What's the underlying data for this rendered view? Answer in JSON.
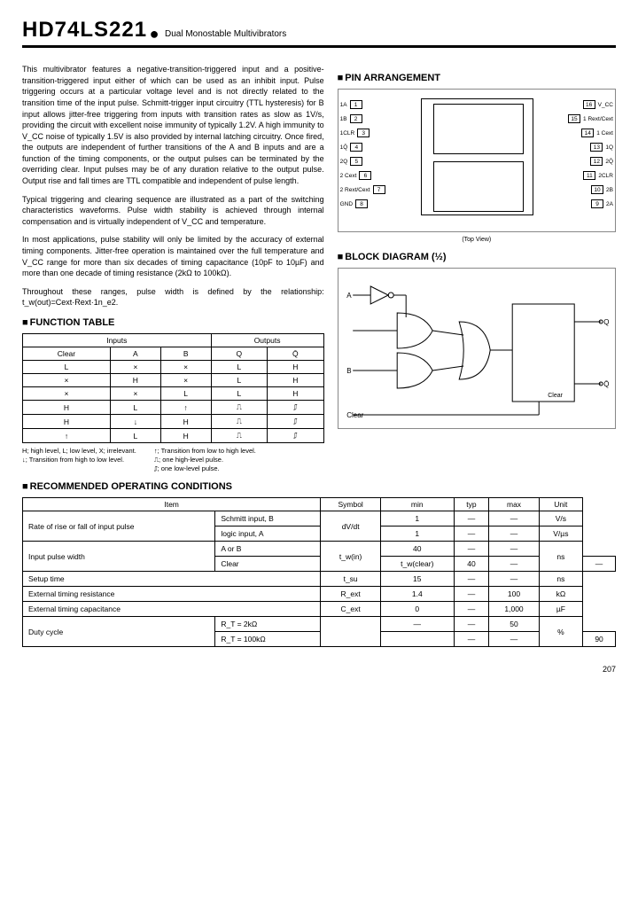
{
  "header": {
    "part_number": "HD74LS221",
    "subtitle": "Dual Monostable Multivibrators"
  },
  "description": {
    "p1": "This multivibrator features a negative-transition-triggered input and a positive-transition-triggered input either of which can be used as an inhibit input. Pulse triggering occurs at a particular voltage level and is not directly related to the transition time of the input pulse. Schmitt-trigger input circuitry (TTL hysteresis) for B input allows jitter-free triggering from inputs with transition rates as slow as 1V/s, providing the circuit with excellent noise immunity of typically 1.2V. A high immunity to V_CC noise of typically 1.5V is also provided by internal latching circuitry. Once fired, the outputs are independent of further transitions of the A and B inputs and are a function of the timing components, or the output pulses can be terminated by the overriding clear. Input pulses may be of any duration relative to the output pulse. Output rise and fall times are TTL compatible and independent of pulse length.",
    "p2": "Typical triggering and clearing sequence are illustrated as a part of the switching characteristics waveforms. Pulse width stability is achieved through internal compensation and is virtually independent of V_CC and temperature.",
    "p3": "In most applications, pulse stability will only be limited by the accuracy of external timing components. Jitter-free operation is maintained over the full temperature and V_CC range for more than six decades of timing capacitance (10pF to 10µF) and more than one decade of timing resistance (2kΩ to 100kΩ).",
    "p4": "Throughout these ranges, pulse width is defined by the relationship: t_w(out)=Cext·Rext·1n_e2."
  },
  "sections": {
    "pin_arrangement": "PIN ARRANGEMENT",
    "block_diagram": "BLOCK DIAGRAM (½)",
    "function_table": "FUNCTION TABLE",
    "recommended": "RECOMMENDED OPERATING CONDITIONS"
  },
  "pin_labels": {
    "left": [
      "1A",
      "1B",
      "1CLR",
      "1Q̄",
      "2Q",
      "2 Cext",
      "2 Rext/Cext",
      "GND"
    ],
    "left_nums": [
      "1",
      "2",
      "3",
      "4",
      "5",
      "6",
      "7",
      "8"
    ],
    "right": [
      "V_CC",
      "1 Rext/Cext",
      "1 Cext",
      "1Q",
      "2Q̄",
      "2CLR",
      "2B",
      "2A"
    ],
    "right_nums": [
      "16",
      "15",
      "14",
      "13",
      "12",
      "11",
      "10",
      "9"
    ],
    "caption": "(Top View)"
  },
  "block_labels": {
    "a": "A",
    "b": "B",
    "clear": "Clear",
    "q": "Q",
    "qbar": "Q̄",
    "clear2": "Clear"
  },
  "function_table": {
    "head_inputs": "Inputs",
    "head_outputs": "Outputs",
    "cols": [
      "Clear",
      "A",
      "B",
      "Q",
      "Q̄"
    ],
    "rows": [
      [
        "L",
        "×",
        "×",
        "L",
        "H"
      ],
      [
        "×",
        "H",
        "×",
        "L",
        "H"
      ],
      [
        "×",
        "×",
        "L",
        "L",
        "H"
      ],
      [
        "H",
        "L",
        "↑",
        "⎍",
        "⎎"
      ],
      [
        "H",
        "↓",
        "H",
        "⎍",
        "⎎"
      ],
      [
        "↑",
        "L",
        "H",
        "⎍",
        "⎎"
      ]
    ],
    "foot_left": "H; high level, L; low level, X; irrelevant.\n↓; Transition from high to low level.",
    "foot_right": "↑; Transition from low to high level.\n⎍; one high-level pulse.\n⎎; one low-level pulse."
  },
  "rec_table": {
    "head": [
      "Item",
      "",
      "Symbol",
      "min",
      "typ",
      "max",
      "Unit"
    ],
    "rows": [
      [
        "Rate of rise or fall of input pulse",
        "Schmitt input, B",
        "dV/dt",
        "1",
        "—",
        "—",
        "V/s"
      ],
      [
        "",
        "logic input, A",
        "",
        "1",
        "—",
        "—",
        "V/µs"
      ],
      [
        "Input pulse width",
        "A or B",
        "t_w(in)",
        "40",
        "—",
        "—",
        "ns"
      ],
      [
        "",
        "Clear",
        "t_w(clear)",
        "40",
        "—",
        "—",
        ""
      ],
      [
        "Setup time",
        "",
        "t_su",
        "15",
        "—",
        "—",
        "ns"
      ],
      [
        "External timing resistance",
        "",
        "R_ext",
        "1.4",
        "—",
        "100",
        "kΩ"
      ],
      [
        "External timing capacitance",
        "",
        "C_ext",
        "0",
        "—",
        "1,000",
        "µF"
      ],
      [
        "Duty cycle",
        "R_T = 2kΩ",
        "",
        "—",
        "—",
        "50",
        "%"
      ],
      [
        "",
        "R_T = 100kΩ",
        "",
        "—",
        "—",
        "90",
        ""
      ]
    ]
  },
  "page_number": "207"
}
